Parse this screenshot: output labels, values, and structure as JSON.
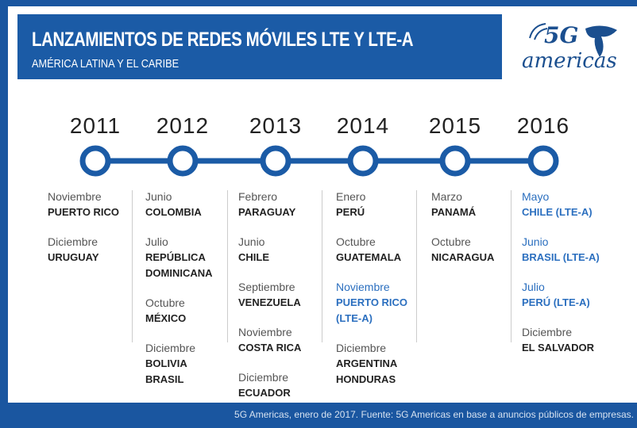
{
  "header": {
    "title": "LANZAMIENTOS DE REDES MÓVILES LTE Y LTE-A",
    "subtitle": "AMÉRICA LATINA Y EL CARIBE"
  },
  "logo": {
    "text": "5G",
    "subtext": "americas"
  },
  "timeline": [
    {
      "year": "2011",
      "events": [
        {
          "month": "Noviembre",
          "lines": [
            "PUERTO RICO"
          ],
          "highlight": false
        },
        {
          "month": "Diciembre",
          "lines": [
            "URUGUAY"
          ],
          "highlight": false
        }
      ]
    },
    {
      "year": "2012",
      "events": [
        {
          "month": "Junio",
          "lines": [
            "COLOMBIA"
          ],
          "highlight": false
        },
        {
          "month": "Julio",
          "lines": [
            "REPÚBLICA",
            "DOMINICANA"
          ],
          "highlight": false
        },
        {
          "month": "Octubre",
          "lines": [
            "MÉXICO"
          ],
          "highlight": false
        },
        {
          "month": "Diciembre",
          "lines": [
            "BOLIVIA",
            "BRASIL"
          ],
          "highlight": false
        }
      ]
    },
    {
      "year": "2013",
      "events": [
        {
          "month": "Febrero",
          "lines": [
            "PARAGUAY"
          ],
          "highlight": false
        },
        {
          "month": "Junio",
          "lines": [
            "CHILE"
          ],
          "highlight": false
        },
        {
          "month": "Septiembre",
          "lines": [
            "VENEZUELA"
          ],
          "highlight": false
        },
        {
          "month": "Noviembre",
          "lines": [
            "COSTA RICA"
          ],
          "highlight": false
        },
        {
          "month": "Diciembre",
          "lines": [
            "ECUADOR"
          ],
          "highlight": false
        }
      ]
    },
    {
      "year": "2014",
      "events": [
        {
          "month": "Enero",
          "lines": [
            "PERÚ"
          ],
          "highlight": false
        },
        {
          "month": "Octubre",
          "lines": [
            "GUATEMALA"
          ],
          "highlight": false
        },
        {
          "month": "Noviembre",
          "lines": [
            "PUERTO RICO",
            "(LTE-A)"
          ],
          "highlight": true
        },
        {
          "month": "Diciembre",
          "lines": [
            "ARGENTINA",
            "HONDURAS"
          ],
          "highlight": false
        }
      ]
    },
    {
      "year": "2015",
      "events": [
        {
          "month": "Marzo",
          "lines": [
            "PANAMÁ"
          ],
          "highlight": false
        },
        {
          "month": "Octubre",
          "lines": [
            "NICARAGUA"
          ],
          "highlight": false
        }
      ]
    },
    {
      "year": "2016",
      "events": [
        {
          "month": "Mayo",
          "lines": [
            "CHILE (LTE-A)"
          ],
          "highlight": true
        },
        {
          "month": "Junio",
          "lines": [
            "BRASIL (LTE-A)"
          ],
          "highlight": true
        },
        {
          "month": "Julio",
          "lines": [
            "PERÚ (LTE-A)"
          ],
          "highlight": true
        },
        {
          "month": "Diciembre",
          "lines": [
            "EL SALVADOR"
          ],
          "highlight": false
        }
      ]
    }
  ],
  "footer": "5G Americas, enero de 2017. Fuente: 5G Americas en base a anuncios públicos de empresas."
}
